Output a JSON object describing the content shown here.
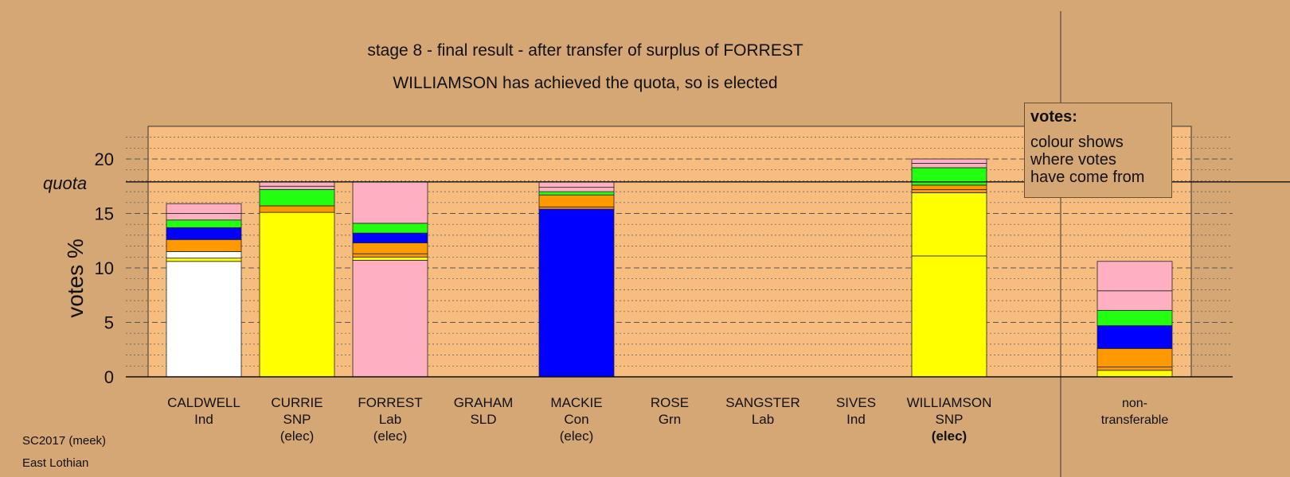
{
  "title": "stage 8 - final result - after transfer of surplus of FORREST",
  "subtitle": "WILLIAMSON has achieved the quota, so is elected",
  "legend": {
    "title": "votes:",
    "lines": [
      "colour shows",
      "where votes",
      "have come from"
    ]
  },
  "footer": {
    "election": "SC2017 (meek)",
    "ward": "East Lothian"
  },
  "colors": {
    "background": "#d4a775",
    "plot_bg": "#f7bd7f",
    "white": "#ffffff",
    "yellow": "#ffff00",
    "orange": "#ff9900",
    "blue": "#0000ff",
    "green": "#22ff11",
    "pink": "#ffb0c0"
  },
  "chart_data": {
    "type": "bar",
    "stacked": true,
    "ylabel": "votes %",
    "ylim": [
      0,
      23
    ],
    "yticks": [
      0,
      5,
      10,
      15,
      20
    ],
    "quota": 17.9,
    "quota_label": "quota",
    "categories": [
      {
        "name": "CALDWELL",
        "party": "Ind",
        "status": ""
      },
      {
        "name": "CURRIE",
        "party": "SNP",
        "status": "(elec)"
      },
      {
        "name": "FORREST",
        "party": "Lab",
        "status": "(elec)"
      },
      {
        "name": "GRAHAM",
        "party": "SLD",
        "status": ""
      },
      {
        "name": "MACKIE",
        "party": "Con",
        "status": "(elec)"
      },
      {
        "name": "ROSE",
        "party": "Grn",
        "status": ""
      },
      {
        "name": "SANGSTER",
        "party": "Lab",
        "status": ""
      },
      {
        "name": "SIVES",
        "party": "Ind",
        "status": ""
      },
      {
        "name": "WILLIAMSON",
        "party": "SNP",
        "status": "(elec)",
        "status_bold": true
      },
      {
        "name": "non-",
        "party": "transferable",
        "status": "",
        "separate": true
      }
    ],
    "bars": [
      [
        {
          "c": "white",
          "v": 10.6
        },
        {
          "c": "yellow",
          "v": 0.3
        },
        {
          "c": "white",
          "v": 0.6
        },
        {
          "c": "orange",
          "v": 1.1
        },
        {
          "c": "blue",
          "v": 1.1
        },
        {
          "c": "green",
          "v": 0.7
        },
        {
          "c": "pink",
          "v": 0.6
        },
        {
          "c": "pink",
          "v": 0.9
        }
      ],
      [
        {
          "c": "yellow",
          "v": 15.1
        },
        {
          "c": "orange",
          "v": 0.6
        },
        {
          "c": "green",
          "v": 1.5
        },
        {
          "c": "pink",
          "v": 0.3
        },
        {
          "c": "pink",
          "v": 0.4
        }
      ],
      [
        {
          "c": "pink",
          "v": 10.7
        },
        {
          "c": "yellow",
          "v": 0.3
        },
        {
          "c": "orange",
          "v": 0.3
        },
        {
          "c": "orange",
          "v": 1.0
        },
        {
          "c": "blue",
          "v": 0.9
        },
        {
          "c": "green",
          "v": 0.9
        },
        {
          "c": "pink",
          "v": 3.8
        }
      ],
      [],
      [
        {
          "c": "blue",
          "v": 15.4
        },
        {
          "c": "orange",
          "v": 0.2
        },
        {
          "c": "orange",
          "v": 1.1
        },
        {
          "c": "green",
          "v": 0.3
        },
        {
          "c": "pink",
          "v": 0.4
        },
        {
          "c": "pink",
          "v": 0.5
        }
      ],
      [],
      [],
      [],
      [
        {
          "c": "yellow",
          "v": 11.1
        },
        {
          "c": "yellow",
          "v": 5.8
        },
        {
          "c": "orange",
          "v": 0.3
        },
        {
          "c": "orange",
          "v": 0.4
        },
        {
          "c": "green",
          "v": 1.6
        },
        {
          "c": "pink",
          "v": 0.4
        },
        {
          "c": "pink",
          "v": 0.4
        }
      ],
      [
        {
          "c": "yellow",
          "v": 0.6
        },
        {
          "c": "orange",
          "v": 0.3
        },
        {
          "c": "orange",
          "v": 1.7
        },
        {
          "c": "blue",
          "v": 2.1
        },
        {
          "c": "green",
          "v": 1.4
        },
        {
          "c": "pink",
          "v": 1.8
        },
        {
          "c": "pink",
          "v": 2.7
        }
      ]
    ]
  }
}
